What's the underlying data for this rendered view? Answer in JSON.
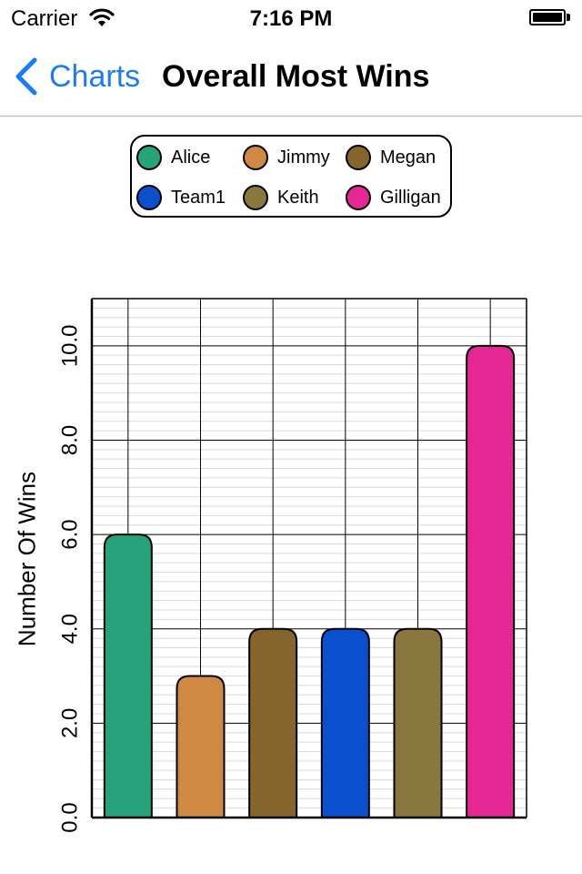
{
  "status_bar": {
    "carrier": "Carrier",
    "time": "7:16 PM"
  },
  "nav": {
    "back_label": "Charts",
    "title": "Overall Most Wins"
  },
  "legend": [
    {
      "label": "Alice",
      "color": "#26a37a"
    },
    {
      "label": "Jimmy",
      "color": "#d08942"
    },
    {
      "label": "Megan",
      "color": "#86652d"
    },
    {
      "label": "Team1",
      "color": "#0a4fcd"
    },
    {
      "label": "Keith",
      "color": "#8a763f"
    },
    {
      "label": "Gilligan",
      "color": "#e62693"
    }
  ],
  "chart_data": {
    "type": "bar",
    "categories": [
      "Alice",
      "Jimmy",
      "Megan",
      "Team1",
      "Keith",
      "Gilligan"
    ],
    "values": [
      6,
      3,
      4,
      4,
      4,
      10
    ],
    "colors": [
      "#26a37a",
      "#d08942",
      "#86652d",
      "#0a4fcd",
      "#8a763f",
      "#e62693"
    ],
    "title": "",
    "xlabel": "",
    "ylabel": "Number Of Wins",
    "ylim": [
      0,
      11
    ],
    "yticks": [
      0,
      2,
      4,
      6,
      8,
      10
    ],
    "ytick_labels": [
      "0.0",
      "2.0",
      "4.0",
      "6.0",
      "8.0",
      "10.0"
    ],
    "minor_step": 0.2,
    "grid": true,
    "legend_position": "top-center"
  }
}
